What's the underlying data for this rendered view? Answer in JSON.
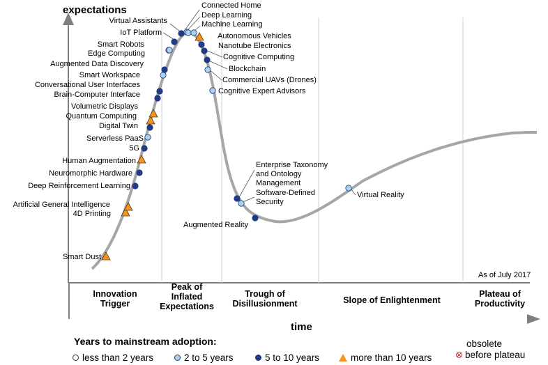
{
  "chart_data": {
    "type": "hype-cycle",
    "y_axis_title": "expectations",
    "x_axis_title": "time",
    "as_of": "As of July 2017",
    "phases": [
      "Innovation Trigger",
      "Peak of Inflated Expectations",
      "Trough of Disillusionment",
      "Slope of Enlightenment",
      "Plateau of Productivity"
    ],
    "phase_lines": [
      "Innovation\nTrigger",
      "Peak of\nInflated\nExpectations",
      "Trough of\nDisillusionment",
      "Slope of Enlightenment",
      "Plateau of\nProductivity"
    ],
    "technologies": [
      {
        "name": "Smart Dust",
        "adoption": "more than 10 years",
        "phase": "Innovation Trigger"
      },
      {
        "name": "4D Printing",
        "adoption": "more than 10 years",
        "phase": "Innovation Trigger"
      },
      {
        "name": "Artificial General Intelligence",
        "adoption": "more than 10 years",
        "phase": "Innovation Trigger"
      },
      {
        "name": "Deep Reinforcement Learning",
        "adoption": "5 to 10 years",
        "phase": "Innovation Trigger"
      },
      {
        "name": "Neuromorphic Hardware",
        "adoption": "5 to 10 years",
        "phase": "Innovation Trigger"
      },
      {
        "name": "Human Augmentation",
        "adoption": "more than 10 years",
        "phase": "Innovation Trigger"
      },
      {
        "name": "5G",
        "adoption": "5 to 10 years",
        "phase": "Innovation Trigger"
      },
      {
        "name": "Serverless PaaS",
        "adoption": "2 to 5 years",
        "phase": "Innovation Trigger"
      },
      {
        "name": "Digital Twin",
        "adoption": "5 to 10 years",
        "phase": "Innovation Trigger"
      },
      {
        "name": "Quantum Computing",
        "adoption": "more than 10 years",
        "phase": "Innovation Trigger"
      },
      {
        "name": "Volumetric Displays",
        "adoption": "more than 10 years",
        "phase": "Innovation Trigger"
      },
      {
        "name": "Brain-Computer Interface",
        "adoption": "5 to 10 years",
        "phase": "Innovation Trigger"
      },
      {
        "name": "Conversational User Interfaces",
        "adoption": "5 to 10 years",
        "phase": "Innovation Trigger"
      },
      {
        "name": "Smart Workspace",
        "adoption": "2 to 5 years",
        "phase": "Innovation Trigger"
      },
      {
        "name": "Augmented Data Discovery",
        "adoption": "5 to 10 years",
        "phase": "Innovation Trigger"
      },
      {
        "name": "Edge Computing",
        "adoption": "2 to 5 years",
        "phase": "Innovation Trigger"
      },
      {
        "name": "Smart Robots",
        "adoption": "2 to 5 years",
        "phase": "Peak of Inflated Expectations"
      },
      {
        "name": "IoT Platform",
        "adoption": "5 to 10 years",
        "phase": "Peak of Inflated Expectations"
      },
      {
        "name": "Virtual Assistants",
        "adoption": "5 to 10 years",
        "phase": "Peak of Inflated Expectations"
      },
      {
        "name": "Connected Home",
        "adoption": "2 to 5 years",
        "phase": "Peak of Inflated Expectations"
      },
      {
        "name": "Deep Learning",
        "adoption": "2 to 5 years",
        "phase": "Peak of Inflated Expectations"
      },
      {
        "name": "Machine Learning",
        "adoption": "2 to 5 years",
        "phase": "Peak of Inflated Expectations"
      },
      {
        "name": "Autonomous Vehicles",
        "adoption": "more than 10 years",
        "phase": "Peak of Inflated Expectations"
      },
      {
        "name": "Nanotube Electronics",
        "adoption": "5 to 10 years",
        "phase": "Peak of Inflated Expectations"
      },
      {
        "name": "Cognitive Computing",
        "adoption": "5 to 10 years",
        "phase": "Peak of Inflated Expectations"
      },
      {
        "name": "Blockchain",
        "adoption": "5 to 10 years",
        "phase": "Peak of Inflated Expectations"
      },
      {
        "name": "Commercial UAVs (Drones)",
        "adoption": "2 to 5 years",
        "phase": "Peak of Inflated Expectations"
      },
      {
        "name": "Cognitive Expert Advisors",
        "adoption": "2 to 5 years",
        "phase": "Peak of Inflated Expectations"
      },
      {
        "name": "Enterprise Taxonomy\nand Ontology\nManagement",
        "adoption": "5 to 10 years",
        "phase": "Trough of Disillusionment"
      },
      {
        "name": "Software-Defined\nSecurity",
        "adoption": "2 to 5 years",
        "phase": "Trough of Disillusionment"
      },
      {
        "name": "Augmented Reality",
        "adoption": "5 to 10 years",
        "phase": "Trough of Disillusionment"
      },
      {
        "name": "Virtual Reality",
        "adoption": "2 to 5 years",
        "phase": "Slope of Enlightenment"
      }
    ],
    "colors": {
      "less than 2 years": "#ffffff",
      "2 to 5 years": "#a9d0f0",
      "5 to 10 years": "#1f3b8c",
      "more than 10 years": "#f3941c",
      "curve": "#a6a6a6",
      "axis": "#7f7f7f",
      "obsolete": "#d03030"
    }
  },
  "legend": {
    "title": "Years to mainstream adoption:",
    "items": [
      {
        "label": "less than 2 years"
      },
      {
        "label": "2 to 5 years"
      },
      {
        "label": "5 to 10 years"
      },
      {
        "label": "more than 10 years"
      }
    ],
    "obsolete_line1": "obsolete",
    "obsolete_line2": "before plateau"
  }
}
